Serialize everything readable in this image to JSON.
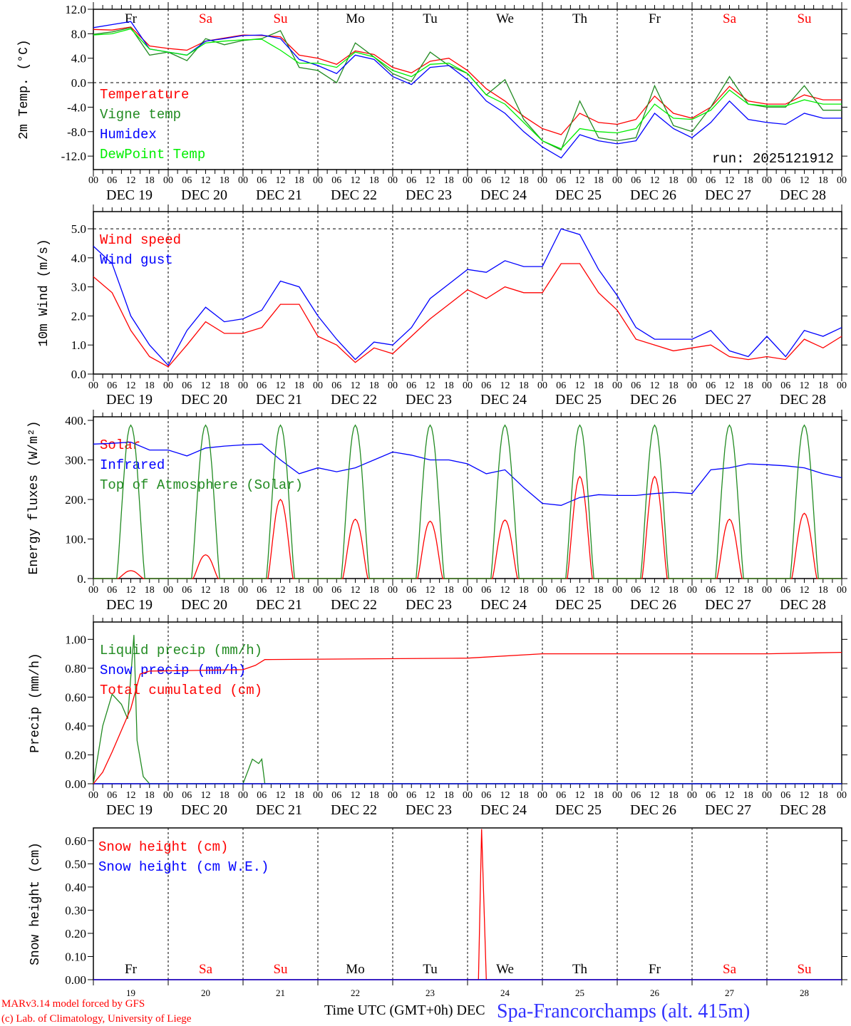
{
  "chart_data": [
    {
      "type": "line",
      "ylabel": "2m Temp. (°C)",
      "ylim": [
        -14.2,
        12.0
      ],
      "yticks": [
        "12.0",
        "8.0",
        "4.0",
        "0.0",
        "-4.0",
        "-8.0",
        "-12.0"
      ],
      "ytick_values": [
        12,
        8,
        4,
        0,
        -4,
        -8,
        -12
      ],
      "hline_dashed": 0,
      "step_h": 6,
      "annotation": "run: 2025121912",
      "series": [
        {
          "name": "Temperature",
          "color": "#ff0000",
          "values": [
            8.7,
            8.6,
            9.1,
            6.0,
            5.6,
            5.3,
            6.8,
            7.3,
            7.8,
            7.7,
            7.5,
            4.5,
            4.0,
            3.0,
            5.2,
            4.6,
            2.5,
            1.6,
            3.5,
            4.0,
            2.0,
            -1.0,
            -3.0,
            -5.5,
            -7.5,
            -8.5,
            -5.0,
            -6.5,
            -6.8,
            -6.0,
            -2.2,
            -5.0,
            -5.8,
            -4.0,
            -0.6,
            -3.0,
            -3.5,
            -3.5,
            -2.0,
            -2.8,
            -2.8
          ]
        },
        {
          "name": "Vigne temp",
          "color": "#228b22",
          "values": [
            7.9,
            8.3,
            9.0,
            4.5,
            5.0,
            3.6,
            7.2,
            6.2,
            6.9,
            7.2,
            8.5,
            2.5,
            2.0,
            0.0,
            6.5,
            4.2,
            1.5,
            0.2,
            5.0,
            2.8,
            1.5,
            -2.0,
            0.5,
            -6.0,
            -9.5,
            -11.0,
            -3.0,
            -9.0,
            -9.5,
            -9.0,
            -0.5,
            -7.0,
            -8.0,
            -4.0,
            1.0,
            -3.5,
            -4.0,
            -4.0,
            -0.5,
            -4.5,
            -4.5
          ]
        },
        {
          "name": "Humidex",
          "color": "#0000ff",
          "values": [
            9.0,
            9.5,
            10.0,
            5.5,
            5.0,
            4.5,
            6.8,
            7.2,
            7.7,
            7.8,
            7.2,
            3.8,
            2.8,
            1.5,
            4.5,
            3.8,
            1.0,
            -0.3,
            2.5,
            2.8,
            0.5,
            -3.0,
            -5.0,
            -8.0,
            -10.5,
            -12.3,
            -8.5,
            -9.5,
            -10.0,
            -9.5,
            -5.0,
            -7.5,
            -9.0,
            -6.5,
            -3.0,
            -6.0,
            -6.5,
            -6.8,
            -5.0,
            -5.8,
            -5.8
          ]
        },
        {
          "name": "DewPoint Temp",
          "color": "#00ee00",
          "values": [
            7.8,
            8.0,
            8.8,
            5.5,
            5.0,
            4.5,
            6.5,
            6.8,
            7.0,
            7.1,
            5.3,
            3.2,
            3.2,
            2.5,
            5.0,
            4.2,
            2.0,
            1.0,
            3.0,
            3.2,
            1.5,
            -2.0,
            -3.5,
            -6.5,
            -9.5,
            -10.8,
            -7.5,
            -8.0,
            -8.2,
            -7.5,
            -3.5,
            -5.8,
            -6.0,
            -4.5,
            -1.2,
            -3.5,
            -3.8,
            -3.8,
            -2.8,
            -3.5,
            -3.5
          ]
        }
      ]
    },
    {
      "type": "line",
      "ylabel": "10m Wind (m/s)",
      "ylim": [
        0,
        5.59
      ],
      "yticks": [
        "5.0",
        "4.0",
        "3.0",
        "2.0",
        "1.0",
        "0.0"
      ],
      "ytick_values": [
        5,
        4,
        3,
        2,
        1,
        0
      ],
      "hline_dashed": 5,
      "step_h": 6,
      "series": [
        {
          "name": "Wind speed",
          "color": "#ff0000",
          "values": [
            3.35,
            2.8,
            1.5,
            0.6,
            0.25,
            1.0,
            1.8,
            1.4,
            1.4,
            1.6,
            2.4,
            2.4,
            1.3,
            1.0,
            0.4,
            0.9,
            0.7,
            1.3,
            1.9,
            2.4,
            2.9,
            2.6,
            3.0,
            2.8,
            2.8,
            3.8,
            3.8,
            2.8,
            2.2,
            1.2,
            1.0,
            0.8,
            0.9,
            1.0,
            0.6,
            0.5,
            0.6,
            0.5,
            1.2,
            0.9,
            1.3
          ]
        },
        {
          "name": "Wind gust",
          "color": "#0000ff",
          "values": [
            4.4,
            3.8,
            2.0,
            1.0,
            0.3,
            1.5,
            2.3,
            1.8,
            1.9,
            2.2,
            3.2,
            3.0,
            2.0,
            1.2,
            0.5,
            1.1,
            1.0,
            1.6,
            2.6,
            3.1,
            3.6,
            3.5,
            3.9,
            3.7,
            3.7,
            5.0,
            4.8,
            3.6,
            2.7,
            1.6,
            1.2,
            1.2,
            1.2,
            1.5,
            0.8,
            0.6,
            1.3,
            0.6,
            1.5,
            1.3,
            1.6
          ]
        }
      ]
    },
    {
      "type": "line",
      "ylabel": "Energy fluxes (W/m²)",
      "ylim": [
        0,
        409
      ],
      "yticks": [
        "400.",
        "300.",
        "200.",
        "100.",
        "0."
      ],
      "ytick_values": [
        400,
        300,
        200,
        100,
        0
      ],
      "step_h": 6,
      "series": [
        {
          "name": "Solar",
          "color": "#ff0000",
          "daily_peak": [
            20,
            60,
            200,
            150,
            145,
            148,
            258,
            258,
            150,
            165
          ],
          "daylight_h": [
            8,
            16
          ]
        },
        {
          "name": "Infrared",
          "color": "#0000ff",
          "values": [
            340,
            342,
            345,
            325,
            325,
            310,
            330,
            335,
            338,
            340,
            300,
            265,
            280,
            270,
            280,
            300,
            320,
            312,
            300,
            300,
            290,
            265,
            275,
            230,
            190,
            185,
            205,
            212,
            210,
            210,
            215,
            218,
            215,
            275,
            280,
            290,
            288,
            285,
            280,
            265,
            255
          ]
        },
        {
          "name": "Top of Atmosphere (Solar)",
          "color": "#228b22",
          "daily_peak": [
            388,
            388,
            388,
            388,
            388,
            388,
            388,
            388,
            388,
            388
          ],
          "daylight_h": [
            7.5,
            16.5
          ]
        }
      ]
    },
    {
      "type": "line",
      "ylabel": "Precip (mm/h)",
      "ylim": [
        0,
        1.12
      ],
      "yticks": [
        "1.00",
        "0.80",
        "0.60",
        "0.40",
        "0.20",
        "0.00"
      ],
      "ytick_values": [
        1,
        0.8,
        0.6,
        0.4,
        0.2,
        0
      ],
      "series": [
        {
          "name": "Liquid precip (mm/h)",
          "color": "#228b22",
          "points": [
            [
              0,
              0
            ],
            [
              3,
              0.4
            ],
            [
              6,
              0.62
            ],
            [
              9,
              0.55
            ],
            [
              11,
              0.45
            ],
            [
              13,
              1.03
            ],
            [
              14,
              0.3
            ],
            [
              16,
              0.05
            ],
            [
              18,
              0
            ],
            [
              48,
              0
            ],
            [
              51,
              0.17
            ],
            [
              53,
              0.14
            ],
            [
              54,
              0.17
            ],
            [
              55,
              0
            ],
            [
              240,
              0
            ]
          ]
        },
        {
          "name": "Snow precip (mm/h)",
          "color": "#0000ff",
          "points": [
            [
              0,
              0
            ],
            [
              240,
              0
            ]
          ]
        },
        {
          "name": "Total cumulated (cm)",
          "color": "#ff0000",
          "points": [
            [
              0,
              0
            ],
            [
              3,
              0.08
            ],
            [
              6,
              0.22
            ],
            [
              12,
              0.52
            ],
            [
              15,
              0.76
            ],
            [
              18,
              0.78
            ],
            [
              48,
              0.79
            ],
            [
              52,
              0.82
            ],
            [
              55,
              0.86
            ],
            [
              120,
              0.87
            ],
            [
              144,
              0.9
            ],
            [
              216,
              0.9
            ],
            [
              240,
              0.91
            ]
          ]
        }
      ]
    },
    {
      "type": "line",
      "ylabel": "Snow height (cm)",
      "ylim": [
        0,
        0.655
      ],
      "yticks": [
        "0.60",
        "0.50",
        "0.40",
        "0.30",
        "0.20",
        "0.10",
        "0.00"
      ],
      "ytick_values": [
        0.6,
        0.5,
        0.4,
        0.3,
        0.2,
        0.1,
        0
      ],
      "series": [
        {
          "name": "Snow height (cm)",
          "color": "#ff0000",
          "points": [
            [
              0,
              0
            ],
            [
              123.5,
              0
            ],
            [
              124.5,
              0.65
            ],
            [
              126,
              0
            ],
            [
              240,
              0
            ]
          ]
        },
        {
          "name": "Snow height (cm W.E.)",
          "color": "#0000ff",
          "points": [
            [
              0,
              0
            ],
            [
              240,
              0
            ]
          ]
        }
      ]
    }
  ],
  "time_axis": {
    "hour_labels": [
      "00",
      "06",
      "12",
      "18"
    ],
    "dates": [
      "DEC 19",
      "DEC 20",
      "DEC 21",
      "DEC 22",
      "DEC 23",
      "DEC 24",
      "DEC 25",
      "DEC 26",
      "DEC 27",
      "DEC 28"
    ],
    "days_of_week": [
      "Fr",
      "Sa",
      "Su",
      "Mo",
      "Tu",
      "We",
      "Th",
      "Fr",
      "Sa",
      "Su"
    ],
    "weekend": [
      false,
      true,
      true,
      false,
      false,
      false,
      false,
      false,
      true,
      true
    ],
    "day_numbers": [
      "19",
      "20",
      "21",
      "22",
      "23",
      "24",
      "25",
      "26",
      "27",
      "28"
    ],
    "xlabel": "Time UTC (GMT+0h) DEC"
  },
  "footer": {
    "model": "MARv3.14 model forced by GFS",
    "copyright": "(c) Lab. of Climatology, University of Liege",
    "station": "Spa-Francorchamps (alt. 415m)"
  },
  "colors": {
    "weekend": "#ff0000",
    "weekday": "#000000",
    "station": "#3333ff"
  }
}
